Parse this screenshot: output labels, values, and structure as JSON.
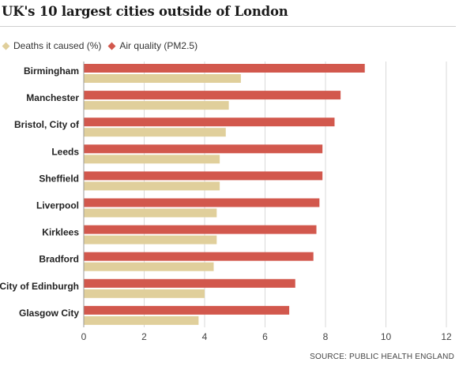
{
  "title": "UK's 10 largest cities outside of London",
  "source": "SOURCE: PUBLIC HEALTH ENGLAND",
  "colors": {
    "deaths": "#e0cf9b",
    "air": "#d2584d",
    "grid": "#d9d9d9",
    "axis": "#999999"
  },
  "chart_data": {
    "type": "bar",
    "orientation": "horizontal",
    "categories": [
      "Birmingham",
      "Manchester",
      "Bristol, City of",
      "Leeds",
      "Sheffield",
      "Liverpool",
      "Kirklees",
      "Bradford",
      "City of Edinburgh",
      "Glasgow City"
    ],
    "series": [
      {
        "name": "Deaths it caused (%)",
        "color": "#e0cf9b",
        "values": [
          5.2,
          4.8,
          4.7,
          4.5,
          4.5,
          4.4,
          4.4,
          4.3,
          4.0,
          3.8
        ]
      },
      {
        "name": "Air quality (PM2.5)",
        "color": "#d2584d",
        "values": [
          9.3,
          8.5,
          8.3,
          7.9,
          7.9,
          7.8,
          7.7,
          7.6,
          7.0,
          6.8
        ]
      }
    ],
    "xlim": [
      0,
      12
    ],
    "xticks": [
      0,
      2,
      4,
      6,
      8,
      10,
      12
    ],
    "grid": true,
    "legend": "top-left"
  }
}
